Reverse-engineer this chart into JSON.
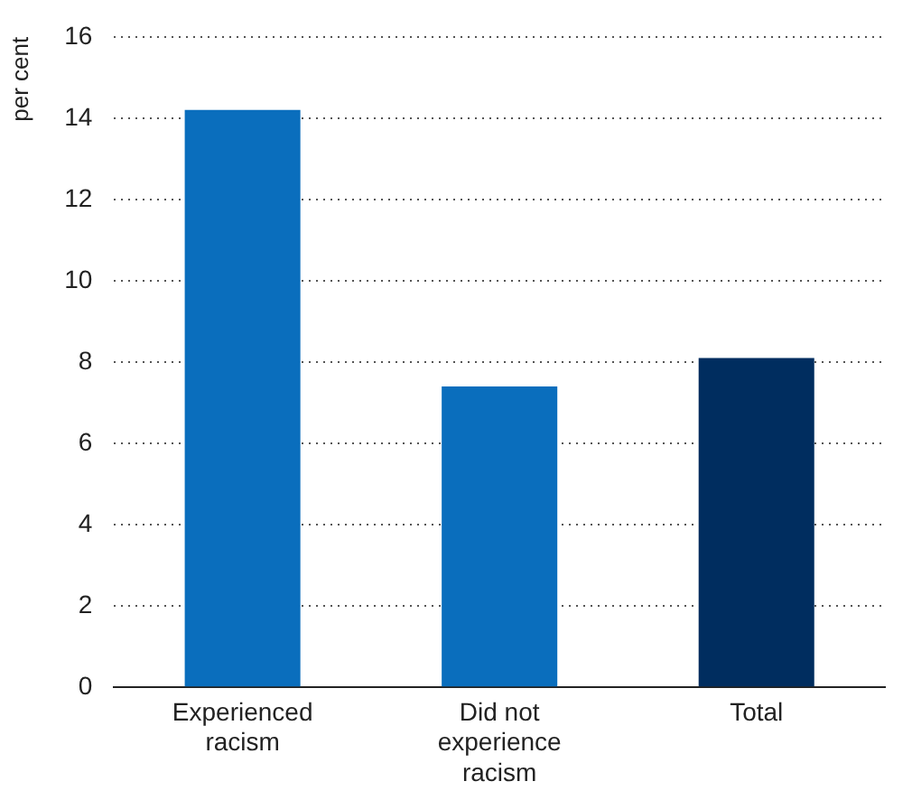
{
  "chart_data": {
    "type": "bar",
    "ylabel": "per cent",
    "categories": [
      "Experienced racism",
      "Did not experience racism",
      "Total"
    ],
    "values": [
      14.2,
      7.4,
      8.1
    ],
    "colors": [
      "#0a6ebd",
      "#0a6ebd",
      "#002d5f"
    ],
    "ylim": [
      0,
      16
    ],
    "yticks": [
      0,
      2,
      4,
      6,
      8,
      10,
      12,
      14,
      16
    ],
    "grid": "y"
  }
}
